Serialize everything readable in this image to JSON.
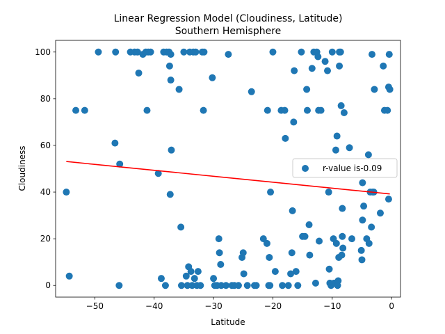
{
  "chart_data": {
    "type": "scatter",
    "title": "Linear Regression Model (Cloudiness, Latitude)",
    "subtitle": "Southern Hemisphere",
    "xlabel": "Latitude",
    "ylabel": "Cloudiness",
    "xlim": [
      -56.6,
      1.5
    ],
    "ylim": [
      -5,
      105
    ],
    "xticks": [
      -50,
      -40,
      -30,
      -20,
      -10,
      0
    ],
    "yticks": [
      0,
      20,
      40,
      60,
      80,
      100
    ],
    "grid": false,
    "legend": {
      "placement": "center-right",
      "entries": [
        {
          "label": "r-value is-0.09",
          "marker": "circle",
          "color": "#1f77b4"
        }
      ]
    },
    "series": [
      {
        "name": "r-value is-0.09",
        "color": "#1f77b4",
        "marker": "circle",
        "points": [
          [
            -54.8,
            40
          ],
          [
            -54.3,
            4
          ],
          [
            -53.2,
            75
          ],
          [
            -51.7,
            75
          ],
          [
            -49.4,
            100
          ],
          [
            -46.5,
            100
          ],
          [
            -46.6,
            61
          ],
          [
            -45.8,
            52
          ],
          [
            -45.9,
            0
          ],
          [
            -44.0,
            100
          ],
          [
            -43.3,
            100
          ],
          [
            -42.8,
            100
          ],
          [
            -42.6,
            91
          ],
          [
            -41.9,
            99
          ],
          [
            -41.4,
            100
          ],
          [
            -41.0,
            100
          ],
          [
            -41.2,
            75
          ],
          [
            -40.6,
            100
          ],
          [
            -39.3,
            48
          ],
          [
            -38.8,
            3
          ],
          [
            -38.4,
            100
          ],
          [
            -38.1,
            0
          ],
          [
            -37.9,
            100
          ],
          [
            -37.5,
            100
          ],
          [
            -37.4,
            94
          ],
          [
            -37.2,
            88
          ],
          [
            -37.2,
            99
          ],
          [
            -37.3,
            39
          ],
          [
            -37.1,
            58
          ],
          [
            -35.8,
            84
          ],
          [
            -35.5,
            25
          ],
          [
            -35.4,
            0
          ],
          [
            -35.0,
            100
          ],
          [
            -34.6,
            4
          ],
          [
            -34.4,
            0
          ],
          [
            -34.2,
            8
          ],
          [
            -34.0,
            100
          ],
          [
            -33.8,
            6
          ],
          [
            -33.6,
            0
          ],
          [
            -33.4,
            100
          ],
          [
            -33.2,
            3
          ],
          [
            -33.0,
            100
          ],
          [
            -32.8,
            0
          ],
          [
            -32.6,
            6
          ],
          [
            -32.2,
            0
          ],
          [
            -31.9,
            100
          ],
          [
            -31.7,
            75
          ],
          [
            -31.6,
            100
          ],
          [
            -30.2,
            89
          ],
          [
            -30.0,
            3
          ],
          [
            -29.8,
            0
          ],
          [
            -29.4,
            0
          ],
          [
            -29.1,
            20
          ],
          [
            -29.0,
            14
          ],
          [
            -28.8,
            9
          ],
          [
            -28.7,
            0
          ],
          [
            -27.9,
            0
          ],
          [
            -27.5,
            99
          ],
          [
            -26.9,
            0
          ],
          [
            -26.5,
            0
          ],
          [
            -25.8,
            0
          ],
          [
            -25.2,
            12
          ],
          [
            -25.0,
            14
          ],
          [
            -24.9,
            5
          ],
          [
            -24.3,
            0
          ],
          [
            -23.6,
            83
          ],
          [
            -23.1,
            0
          ],
          [
            -22.8,
            0
          ],
          [
            -21.6,
            20
          ],
          [
            -21.0,
            18
          ],
          [
            -20.9,
            75
          ],
          [
            -20.7,
            0
          ],
          [
            -20.6,
            12
          ],
          [
            -20.5,
            0
          ],
          [
            -20.4,
            40
          ],
          [
            -20.0,
            100
          ],
          [
            -19.6,
            6
          ],
          [
            -18.6,
            75
          ],
          [
            -18.4,
            0
          ],
          [
            -18.0,
            75
          ],
          [
            -17.9,
            63
          ],
          [
            -17.4,
            0
          ],
          [
            -17.0,
            5
          ],
          [
            -16.8,
            14
          ],
          [
            -16.7,
            32
          ],
          [
            -16.5,
            70
          ],
          [
            -16.4,
            92
          ],
          [
            -16.1,
            6
          ],
          [
            -15.8,
            0
          ],
          [
            -15.2,
            100
          ],
          [
            -15.0,
            21
          ],
          [
            -14.6,
            21
          ],
          [
            -14.3,
            84
          ],
          [
            -14.2,
            75
          ],
          [
            -13.9,
            26
          ],
          [
            -13.8,
            13
          ],
          [
            -13.4,
            93
          ],
          [
            -13.1,
            100
          ],
          [
            -12.8,
            1
          ],
          [
            -12.6,
            100
          ],
          [
            -12.4,
            98
          ],
          [
            -12.2,
            19
          ],
          [
            -12.3,
            75
          ],
          [
            -11.9,
            75
          ],
          [
            -11.2,
            96
          ],
          [
            -10.8,
            92
          ],
          [
            -10.6,
            40
          ],
          [
            -10.5,
            7
          ],
          [
            -10.4,
            1
          ],
          [
            -10.2,
            0
          ],
          [
            -10.0,
            100
          ],
          [
            -9.8,
            20
          ],
          [
            -9.7,
            1
          ],
          [
            -9.4,
            58
          ],
          [
            -9.3,
            18
          ],
          [
            -9.2,
            64
          ],
          [
            -9.1,
            0
          ],
          [
            -9.0,
            2
          ],
          [
            -8.9,
            12
          ],
          [
            -8.8,
            94
          ],
          [
            -8.6,
            100
          ],
          [
            -8.8,
            100
          ],
          [
            -8.5,
            77
          ],
          [
            -8.4,
            13
          ],
          [
            -8.3,
            33
          ],
          [
            -8.3,
            21
          ],
          [
            -8.2,
            16
          ],
          [
            -8.0,
            74
          ],
          [
            -7.1,
            59
          ],
          [
            -6.7,
            20
          ],
          [
            -5.1,
            15
          ],
          [
            -5.0,
            11
          ],
          [
            -4.9,
            28
          ],
          [
            -4.9,
            44
          ],
          [
            -4.7,
            34
          ],
          [
            -4.2,
            20
          ],
          [
            -3.9,
            56
          ],
          [
            -3.8,
            18
          ],
          [
            -3.6,
            40
          ],
          [
            -3.4,
            25
          ],
          [
            -3.3,
            99
          ],
          [
            -3.2,
            40
          ],
          [
            -3.0,
            40
          ],
          [
            -2.9,
            84
          ],
          [
            -1.9,
            31
          ],
          [
            -1.4,
            94
          ],
          [
            -1.2,
            75
          ],
          [
            -0.7,
            75
          ],
          [
            -0.5,
            37
          ],
          [
            -0.5,
            85
          ],
          [
            -0.4,
            99
          ],
          [
            -0.3,
            84
          ]
        ]
      }
    ],
    "regression": {
      "name": "r-value is-0.09",
      "color": "#ff0000",
      "x": [
        -54.8,
        -0.3
      ],
      "y": [
        53.1,
        39.2
      ]
    }
  }
}
